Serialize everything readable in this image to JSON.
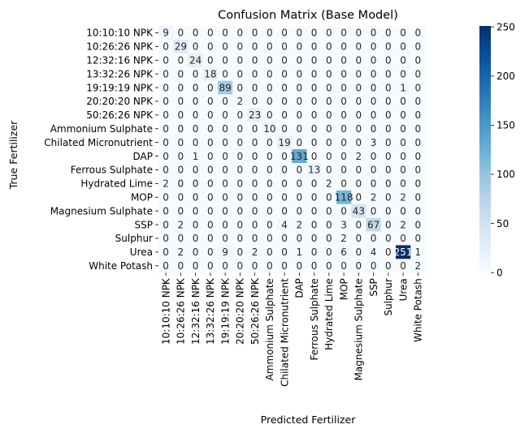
{
  "chart_data": {
    "type": "heatmap",
    "title": "Confusion Matrix (Base Model)",
    "xlabel": "Predicted Fertilizer",
    "ylabel": "True Fertilizer",
    "labels": [
      "10:10:10 NPK",
      "10:26:26 NPK",
      "12:32:16 NPK",
      "13:32:26 NPK",
      "19:19:19 NPK",
      "20:20:20 NPK",
      "50:26:26 NPK",
      "Ammonium Sulphate",
      "Chilated Micronutrient",
      "DAP",
      "Ferrous Sulphate",
      "Hydrated Lime",
      "MOP",
      "Magnesium Sulphate",
      "SSP",
      "Sulphur",
      "Urea",
      "White Potash"
    ],
    "matrix": [
      [
        9,
        0,
        0,
        0,
        0,
        0,
        0,
        0,
        0,
        0,
        0,
        0,
        0,
        0,
        0,
        0,
        0,
        0
      ],
      [
        0,
        29,
        0,
        0,
        0,
        0,
        0,
        0,
        0,
        0,
        0,
        0,
        0,
        0,
        0,
        0,
        0,
        0
      ],
      [
        0,
        0,
        24,
        0,
        0,
        0,
        0,
        0,
        0,
        0,
        0,
        0,
        0,
        0,
        0,
        0,
        0,
        0
      ],
      [
        0,
        0,
        0,
        18,
        0,
        0,
        0,
        0,
        0,
        0,
        0,
        0,
        0,
        0,
        0,
        0,
        0,
        0
      ],
      [
        0,
        0,
        0,
        0,
        89,
        0,
        0,
        0,
        0,
        0,
        0,
        0,
        0,
        0,
        0,
        0,
        1,
        0
      ],
      [
        0,
        0,
        0,
        0,
        0,
        2,
        0,
        0,
        0,
        0,
        0,
        0,
        0,
        0,
        0,
        0,
        0,
        0
      ],
      [
        0,
        0,
        0,
        0,
        0,
        0,
        23,
        0,
        0,
        0,
        0,
        0,
        0,
        0,
        0,
        0,
        0,
        0
      ],
      [
        0,
        0,
        0,
        0,
        0,
        0,
        0,
        10,
        0,
        0,
        0,
        0,
        0,
        0,
        0,
        0,
        0,
        0
      ],
      [
        0,
        0,
        0,
        0,
        0,
        0,
        0,
        0,
        19,
        0,
        0,
        0,
        0,
        0,
        3,
        0,
        0,
        0
      ],
      [
        0,
        0,
        1,
        0,
        0,
        0,
        0,
        0,
        0,
        131,
        0,
        0,
        0,
        2,
        0,
        0,
        0,
        0
      ],
      [
        0,
        0,
        0,
        0,
        0,
        0,
        0,
        0,
        0,
        0,
        13,
        0,
        0,
        0,
        0,
        0,
        0,
        0
      ],
      [
        2,
        0,
        0,
        0,
        0,
        0,
        0,
        0,
        0,
        0,
        0,
        2,
        0,
        0,
        0,
        0,
        0,
        0
      ],
      [
        0,
        0,
        0,
        0,
        0,
        0,
        0,
        0,
        0,
        0,
        0,
        0,
        118,
        0,
        2,
        0,
        2,
        0
      ],
      [
        0,
        0,
        0,
        0,
        0,
        0,
        0,
        0,
        0,
        0,
        0,
        0,
        0,
        43,
        0,
        0,
        0,
        0
      ],
      [
        0,
        2,
        0,
        0,
        0,
        0,
        0,
        0,
        4,
        2,
        0,
        0,
        3,
        0,
        67,
        0,
        2,
        0
      ],
      [
        0,
        0,
        0,
        0,
        0,
        0,
        0,
        0,
        0,
        0,
        0,
        0,
        2,
        0,
        0,
        0,
        0,
        0
      ],
      [
        0,
        2,
        0,
        0,
        9,
        0,
        2,
        0,
        0,
        1,
        0,
        0,
        6,
        0,
        4,
        0,
        251,
        1
      ],
      [
        0,
        0,
        0,
        0,
        0,
        0,
        0,
        0,
        0,
        0,
        0,
        0,
        0,
        0,
        0,
        0,
        0,
        2
      ]
    ],
    "vmin": 0,
    "vmax": 251,
    "colormap": "Blues",
    "colorbar_ticks": [
      0,
      50,
      100,
      150,
      200,
      250
    ],
    "grid": false
  }
}
